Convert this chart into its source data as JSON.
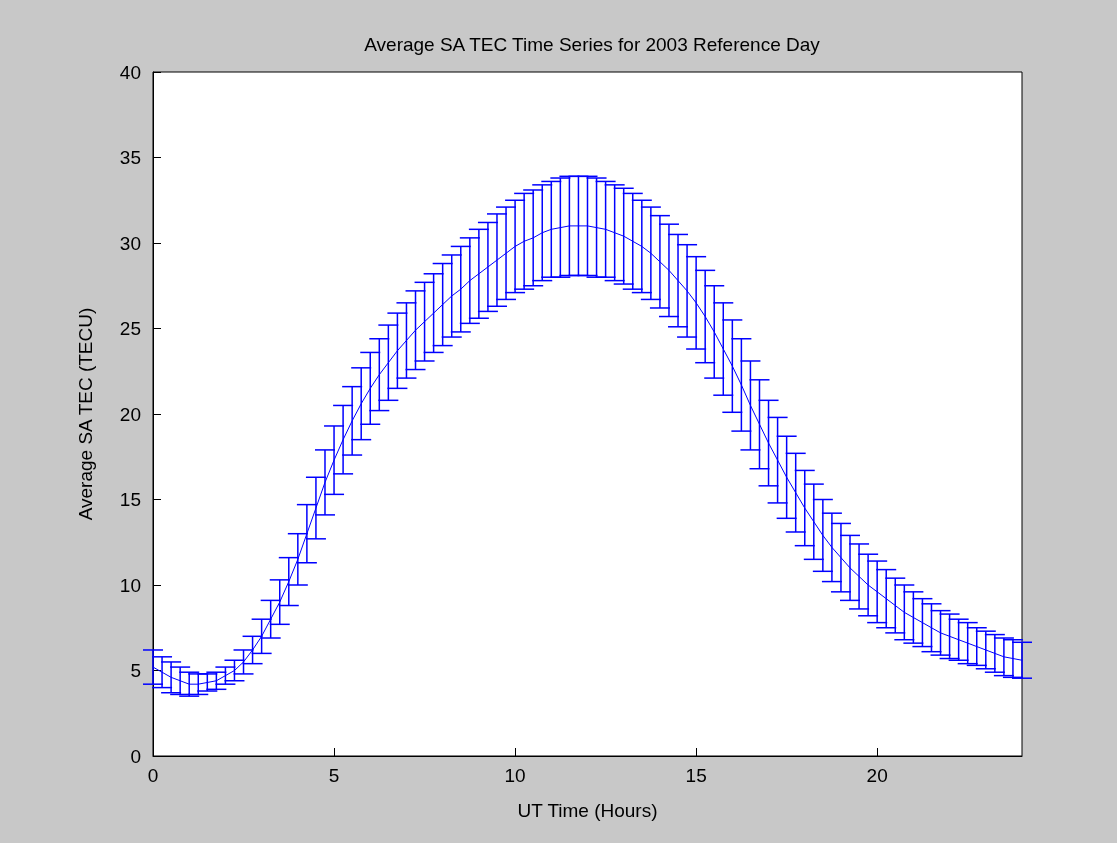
{
  "chart_data": {
    "type": "line",
    "title": "Average SA TEC Time Series for 2003 Reference Day",
    "xlabel": "UT Time (Hours)",
    "ylabel": "Average SA TEC (TECU)",
    "x": [
      0,
      0.25,
      0.5,
      0.75,
      1,
      1.25,
      1.5,
      1.75,
      2,
      2.25,
      2.5,
      2.75,
      3,
      3.25,
      3.5,
      3.75,
      4,
      4.25,
      4.5,
      4.75,
      5,
      5.25,
      5.5,
      5.75,
      6,
      6.25,
      6.5,
      6.75,
      7,
      7.25,
      7.5,
      7.75,
      8,
      8.25,
      8.5,
      8.75,
      9,
      9.25,
      9.5,
      9.75,
      10,
      10.25,
      10.5,
      10.75,
      11,
      11.25,
      11.5,
      11.75,
      12,
      12.25,
      12.5,
      12.75,
      13,
      13.25,
      13.5,
      13.75,
      14,
      14.25,
      14.5,
      14.75,
      15,
      15.25,
      15.5,
      15.75,
      16,
      16.25,
      16.5,
      16.75,
      17,
      17.25,
      17.5,
      17.75,
      18,
      18.25,
      18.5,
      18.75,
      19,
      19.25,
      19.5,
      19.75,
      20,
      20.25,
      20.5,
      20.75,
      21,
      21.25,
      21.5,
      21.75,
      22,
      22.25,
      22.5,
      22.75,
      23,
      23.25,
      23.5,
      23.75,
      24
    ],
    "series": [
      {
        "color": "#0000ff",
        "values": [
          5.2,
          4.9,
          4.6,
          4.4,
          4.2,
          4.2,
          4.3,
          4.4,
          4.7,
          5.0,
          5.5,
          6.2,
          7.0,
          8.0,
          9.0,
          10.2,
          11.5,
          13.0,
          14.5,
          16.0,
          17.3,
          18.5,
          19.6,
          20.6,
          21.5,
          22.3,
          23.0,
          23.7,
          24.3,
          24.9,
          25.4,
          25.9,
          26.4,
          26.9,
          27.3,
          27.8,
          28.2,
          28.6,
          29.0,
          29.4,
          29.8,
          30.1,
          30.3,
          30.6,
          30.8,
          30.9,
          31.0,
          31.0,
          31.0,
          30.9,
          30.8,
          30.6,
          30.4,
          30.1,
          29.8,
          29.4,
          28.9,
          28.4,
          27.8,
          27.2,
          26.5,
          25.7,
          24.8,
          23.8,
          22.8,
          21.7,
          20.5,
          19.4,
          18.3,
          17.3,
          16.3,
          15.4,
          14.5,
          13.7,
          12.9,
          12.2,
          11.6,
          11.0,
          10.5,
          10.0,
          9.6,
          9.2,
          8.8,
          8.4,
          8.1,
          7.8,
          7.5,
          7.2,
          7.0,
          6.8,
          6.6,
          6.4,
          6.2,
          6.0,
          5.8,
          5.7,
          5.6
        ],
        "errors": [
          1.0,
          0.9,
          0.9,
          0.8,
          0.7,
          0.6,
          0.5,
          0.5,
          0.5,
          0.6,
          0.7,
          0.8,
          1.0,
          1.1,
          1.3,
          1.4,
          1.5,
          1.7,
          1.8,
          1.9,
          2.0,
          2.0,
          2.0,
          2.1,
          2.1,
          2.1,
          2.2,
          2.2,
          2.2,
          2.3,
          2.3,
          2.3,
          2.4,
          2.4,
          2.5,
          2.5,
          2.6,
          2.6,
          2.7,
          2.7,
          2.7,
          2.8,
          2.8,
          2.8,
          2.8,
          2.9,
          2.9,
          2.9,
          2.9,
          2.9,
          2.8,
          2.8,
          2.8,
          2.8,
          2.7,
          2.7,
          2.7,
          2.7,
          2.7,
          2.7,
          2.7,
          2.7,
          2.7,
          2.7,
          2.7,
          2.7,
          2.6,
          2.6,
          2.5,
          2.5,
          2.4,
          2.3,
          2.2,
          2.2,
          2.1,
          2.0,
          2.0,
          1.9,
          1.9,
          1.8,
          1.8,
          1.7,
          1.6,
          1.6,
          1.5,
          1.4,
          1.4,
          1.3,
          1.3,
          1.2,
          1.2,
          1.1,
          1.1,
          1.1,
          1.1,
          1.1,
          1.05
        ]
      }
    ],
    "xlim": [
      0,
      24
    ],
    "xticks": [
      0,
      5,
      10,
      15,
      20
    ],
    "ylim": [
      0,
      40
    ],
    "yticks": [
      0,
      5,
      10,
      15,
      20,
      25,
      30,
      35,
      40
    ],
    "grid": false,
    "marker": "none",
    "line_style": "solid"
  }
}
